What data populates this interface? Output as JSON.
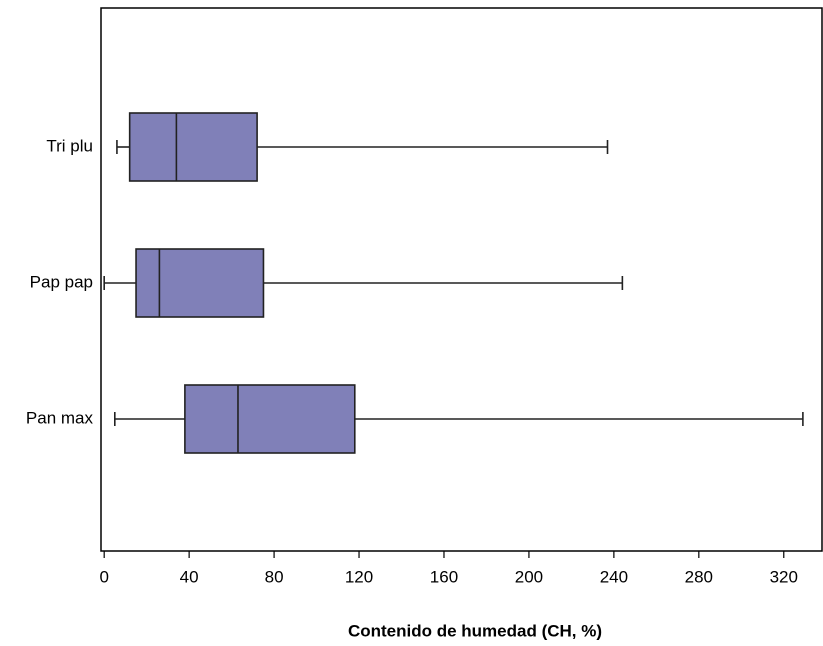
{
  "chart_data": {
    "type": "boxplot",
    "orientation": "horizontal",
    "x_label": "Contenido de humedad (CH, %)",
    "categories": [
      "Tri plu",
      "Pap pap",
      "Pan max"
    ],
    "whislo": [
      6,
      0,
      5
    ],
    "q1": [
      12,
      15,
      38
    ],
    "med": [
      34,
      26,
      63
    ],
    "q3": [
      72,
      75,
      118
    ],
    "whishi": [
      237,
      244,
      329
    ],
    "color": "#8080b8",
    "xlim": [
      -1.5,
      338
    ],
    "xticks": [
      0,
      40,
      80,
      120,
      160,
      200,
      240,
      280,
      320
    ]
  }
}
